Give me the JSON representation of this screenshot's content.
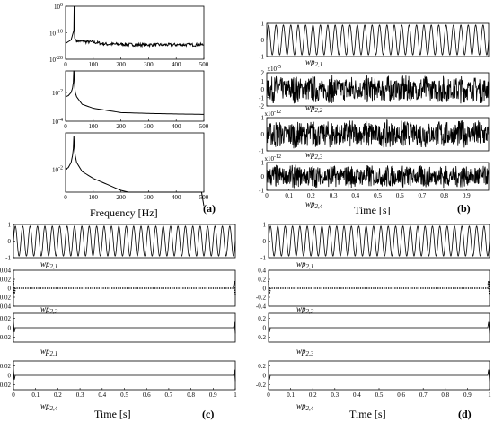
{
  "figure": {
    "panel_labels": [
      "(a)",
      "(b)",
      "(c)",
      "(d)"
    ],
    "time_axis_label": "Time [s]",
    "freq_axis_label": "Frequency [Hz]"
  },
  "chart_data": [
    {
      "panel": "(a)",
      "type": "line",
      "xlabel": "Frequency [Hz]",
      "xlim": [
        0,
        500
      ],
      "xticks": [
        "0",
        "100",
        "200",
        "300",
        "400",
        "500"
      ],
      "subplots": [
        {
          "scale": "log",
          "yticks": [
            "10^0",
            "10^-10",
            "10^-20"
          ],
          "series": [
            {
              "x": [
                0,
                20,
                30,
                31,
                32,
                33,
                40,
                60,
                100,
                150,
                200,
                250,
                300,
                350,
                400,
                450,
                500
              ],
              "y": [
                1e-14,
                2e-13,
                1e-09,
                1,
                1e-09,
                1e-12,
                1e-13,
                5e-14,
                3e-14,
                5e-15,
                5e-15,
                3e-15,
                3e-15,
                3e-15,
                3e-15,
                3e-15,
                3e-15
              ]
            }
          ]
        },
        {
          "scale": "log",
          "yticks": [
            "10^-2",
            "10^-4"
          ],
          "series": [
            {
              "x": [
                0,
                10,
                20,
                25,
                28,
                30,
                32,
                35,
                40,
                60,
                100,
                200,
                300,
                400,
                500
              ],
              "y": [
                0.005,
                0.006,
                0.01,
                0.02,
                0.05,
                0.5,
                0.05,
                0.01,
                0.005,
                0.0015,
                0.0008,
                0.0004,
                0.00035,
                0.00032,
                0.0003
              ]
            }
          ]
        },
        {
          "scale": "log",
          "yticks": [
            "10^-2"
          ],
          "series": [
            {
              "x": [
                0,
                10,
                20,
                25,
                28,
                30,
                32,
                35,
                40,
                60,
                100,
                200,
                300,
                400,
                500
              ],
              "y": [
                0.01,
                0.012,
                0.02,
                0.04,
                0.08,
                0.3,
                0.08,
                0.04,
                0.02,
                0.008,
                0.004,
                0.0012,
                0.0006,
                0.0004,
                0.00025
              ]
            }
          ]
        }
      ]
    },
    {
      "panel": "(b)",
      "type": "line",
      "xlabel": "Time [s]",
      "xlim": [
        0,
        1
      ],
      "xticks": [
        "0",
        "0.1",
        "0.2",
        "0.3",
        "0.4",
        "0.5",
        "0.6",
        "0.7",
        "0.8",
        "0.9"
      ],
      "subplots": [
        {
          "label": "wp2,1",
          "multiplier": "",
          "ylim": [
            -1,
            1
          ],
          "yticks": [
            "1",
            "0",
            "-1"
          ],
          "cycles": 30,
          "kind": "sine"
        },
        {
          "label": "wp2,2",
          "multiplier": "x10^-5",
          "ylim": [
            -2,
            2
          ],
          "yticks": [
            "2",
            "1",
            "0",
            "-1",
            "-2"
          ],
          "kind": "noise"
        },
        {
          "label": "wp2,3",
          "multiplier": "x10^-12",
          "ylim": [
            -1,
            1
          ],
          "yticks": [
            "1",
            "0",
            "-1"
          ],
          "kind": "noise"
        },
        {
          "label": "wp2,4",
          "multiplier": "x10^-12",
          "ylim": [
            -1,
            1
          ],
          "yticks": [
            "1",
            "0",
            "-1"
          ],
          "kind": "noise"
        }
      ]
    },
    {
      "panel": "(c)",
      "type": "line",
      "xlabel": "Time [s]",
      "xlim": [
        0,
        1
      ],
      "xticks": [
        "0",
        "0.1",
        "0.2",
        "0.3",
        "0.4",
        "0.5",
        "0.6",
        "0.7",
        "0.8",
        "0.9",
        "1"
      ],
      "subplots": [
        {
          "label": "wp2,1",
          "ylim": [
            -1,
            1
          ],
          "yticks": [
            "1",
            "0",
            "-1"
          ],
          "cycles": 30,
          "kind": "sine"
        },
        {
          "label": "wp2,2",
          "ylim": [
            -0.04,
            0.04
          ],
          "yticks": [
            "0.04",
            "0.02",
            "0",
            "-0.02",
            "-0.04"
          ],
          "kind": "flat-dotted"
        },
        {
          "label": "wp2,1",
          "ylim": [
            -0.03,
            0.03
          ],
          "yticks": [
            "0.02",
            "0",
            "-0.02"
          ],
          "kind": "flat"
        },
        {
          "label": "wp2,4",
          "ylim": [
            -0.03,
            0.03
          ],
          "yticks": [
            "0.02",
            "0",
            "-0.02"
          ],
          "kind": "flat"
        }
      ]
    },
    {
      "panel": "(d)",
      "type": "line",
      "xlabel": "Time [s]",
      "xlim": [
        0,
        1
      ],
      "xticks": [
        "0",
        "0.1",
        "0.2",
        "0.3",
        "0.4",
        "0.5",
        "0.6",
        "0.7",
        "0.8",
        "0.9",
        "1"
      ],
      "subplots": [
        {
          "label": "wp2,1",
          "ylim": [
            -1,
            1
          ],
          "yticks": [
            "1",
            "0",
            "-1"
          ],
          "cycles": 30,
          "kind": "sine"
        },
        {
          "label": "wp2,2",
          "ylim": [
            -0.4,
            0.4
          ],
          "yticks": [
            "0.4",
            "0.2",
            "0",
            "-0.2",
            "-0.4"
          ],
          "kind": "flat-dotted"
        },
        {
          "label": "wp2,3",
          "ylim": [
            -0.3,
            0.3
          ],
          "yticks": [
            "0.2",
            "0",
            "-0.2"
          ],
          "kind": "flat"
        },
        {
          "label": "wp2,4",
          "ylim": [
            -0.3,
            0.3
          ],
          "yticks": [
            "0.2",
            "0",
            "-0.2"
          ],
          "kind": "flat"
        }
      ]
    }
  ]
}
